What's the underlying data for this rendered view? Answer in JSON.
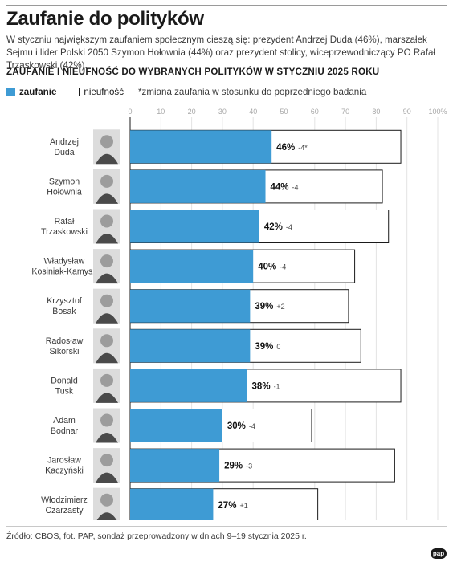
{
  "title": "Zaufanie do polityków",
  "lead": "W styczniu największym zaufaniem społecznym cieszą się: prezydent Andrzej Duda (46%), marszałek Sejmu i lider Polski 2050 Szymon Hołownia (44%) oraz prezydent stolicy, wiceprzewodniczący PO Rafał Trzaskowski (42%).",
  "subtitle": "ZAUFANIE I NIEUFNOŚĆ DO WYBRANYCH POLITYKÓW W STYCZNIU 2025 ROKU",
  "legend": {
    "trust": "zaufanie",
    "distrust": "nieufność",
    "note": "*zmiana zaufania w stosunku do poprzedniego badania"
  },
  "colors": {
    "trust": "#3e9bd4",
    "distrust": "#ffffff",
    "outline": "#1a1a1a"
  },
  "chart_data": {
    "type": "bar",
    "orientation": "horizontal",
    "xlim": [
      0,
      100
    ],
    "ticks": [
      "0",
      "10",
      "20",
      "30",
      "40",
      "50",
      "60",
      "70",
      "80",
      "90",
      "100%"
    ],
    "categories": [
      [
        "Andrzej",
        "Duda"
      ],
      [
        "Szymon",
        "Hołownia"
      ],
      [
        "Rafał",
        "Trzaskowski"
      ],
      [
        "Władysław",
        "Kosiniak-Kamysz"
      ],
      [
        "Krzysztof",
        "Bosak"
      ],
      [
        "Radosław",
        "Sikorski"
      ],
      [
        "Donald",
        "Tusk"
      ],
      [
        "Adam",
        "Bodnar"
      ],
      [
        "Jarosław",
        "Kaczyński"
      ],
      [
        "Włodzimierz",
        "Czarzasty"
      ]
    ],
    "series": [
      {
        "name": "zaufanie",
        "values": [
          46,
          44,
          42,
          40,
          39,
          39,
          38,
          30,
          29,
          27
        ]
      },
      {
        "name": "nieufność",
        "values": [
          42,
          38,
          42,
          33,
          32,
          36,
          50,
          29,
          57,
          34
        ]
      }
    ],
    "value_labels": [
      "46%",
      "44%",
      "42%",
      "40%",
      "39%",
      "39%",
      "38%",
      "30%",
      "29%",
      "27%"
    ],
    "change_labels": [
      "-4*",
      "-4",
      "-4",
      "-4",
      "+2",
      "0",
      "-1",
      "-4",
      "-3",
      "+1"
    ]
  },
  "source": "Źródło: CBOS, fot. PAP, sondaż przeprowadzony w dniach 9–19 stycznia 2025 r.",
  "logo": "pap"
}
